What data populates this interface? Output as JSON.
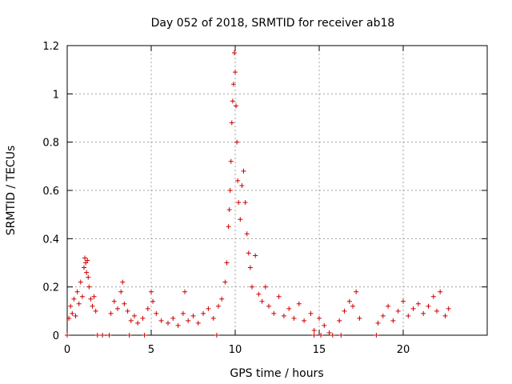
{
  "chart_data": {
    "type": "scatter",
    "title": "Day 052 of 2018, SRMTID for receiver ab18",
    "xlabel": "GPS time / hours",
    "ylabel": "SRMTID / TECUs",
    "xlim": [
      0,
      25
    ],
    "ylim": [
      0,
      1.2
    ],
    "xticks": [
      0,
      5,
      10,
      15,
      20
    ],
    "xtick_labels": [
      "0",
      "5",
      "10",
      "15",
      "20"
    ],
    "yticks": [
      0,
      0.2,
      0.4,
      0.6,
      0.8,
      1,
      1.2
    ],
    "ytick_labels": [
      "0",
      "0.2",
      "0.4",
      "0.6",
      "0.8",
      "1",
      "1.2"
    ],
    "grid": true,
    "marker": "+",
    "color": "#cc0000",
    "series": [
      {
        "name": "SRMTID",
        "points": [
          [
            0.1,
            0.07
          ],
          [
            0.2,
            0.12
          ],
          [
            0.3,
            0.09
          ],
          [
            0.4,
            0.15
          ],
          [
            0.5,
            0.08
          ],
          [
            0.6,
            0.18
          ],
          [
            0.7,
            0.13
          ],
          [
            0.8,
            0.22
          ],
          [
            0.9,
            0.16
          ],
          [
            1.0,
            0.28
          ],
          [
            1.05,
            0.32
          ],
          [
            1.1,
            0.3
          ],
          [
            1.15,
            0.26
          ],
          [
            1.2,
            0.31
          ],
          [
            1.25,
            0.24
          ],
          [
            1.3,
            0.2
          ],
          [
            1.4,
            0.15
          ],
          [
            1.5,
            0.12
          ],
          [
            1.6,
            0.16
          ],
          [
            1.7,
            0.1
          ],
          [
            2.6,
            0.09
          ],
          [
            2.8,
            0.14
          ],
          [
            3.0,
            0.11
          ],
          [
            3.2,
            0.18
          ],
          [
            3.3,
            0.22
          ],
          [
            3.4,
            0.13
          ],
          [
            3.6,
            0.1
          ],
          [
            3.8,
            0.06
          ],
          [
            4.0,
            0.08
          ],
          [
            4.2,
            0.05
          ],
          [
            4.5,
            0.07
          ],
          [
            4.8,
            0.11
          ],
          [
            5.0,
            0.18
          ],
          [
            5.1,
            0.14
          ],
          [
            5.3,
            0.09
          ],
          [
            5.6,
            0.06
          ],
          [
            6.0,
            0.05
          ],
          [
            6.3,
            0.07
          ],
          [
            6.6,
            0.04
          ],
          [
            6.9,
            0.09
          ],
          [
            7.0,
            0.18
          ],
          [
            7.2,
            0.06
          ],
          [
            7.5,
            0.08
          ],
          [
            7.8,
            0.05
          ],
          [
            8.1,
            0.09
          ],
          [
            8.4,
            0.11
          ],
          [
            8.7,
            0.07
          ],
          [
            9.0,
            0.12
          ],
          [
            9.2,
            0.15
          ],
          [
            9.4,
            0.22
          ],
          [
            9.5,
            0.3
          ],
          [
            9.6,
            0.45
          ],
          [
            9.65,
            0.52
          ],
          [
            9.7,
            0.6
          ],
          [
            9.75,
            0.72
          ],
          [
            9.8,
            0.88
          ],
          [
            9.85,
            0.97
          ],
          [
            9.9,
            1.04
          ],
          [
            9.95,
            1.17
          ],
          [
            10.0,
            1.09
          ],
          [
            10.05,
            0.95
          ],
          [
            10.1,
            0.8
          ],
          [
            10.15,
            0.64
          ],
          [
            10.2,
            0.55
          ],
          [
            10.3,
            0.48
          ],
          [
            10.4,
            0.62
          ],
          [
            10.5,
            0.68
          ],
          [
            10.6,
            0.55
          ],
          [
            10.7,
            0.42
          ],
          [
            10.8,
            0.34
          ],
          [
            10.9,
            0.28
          ],
          [
            11.0,
            0.2
          ],
          [
            11.2,
            0.33
          ],
          [
            11.4,
            0.17
          ],
          [
            11.6,
            0.14
          ],
          [
            11.8,
            0.2
          ],
          [
            12.0,
            0.12
          ],
          [
            12.3,
            0.09
          ],
          [
            12.6,
            0.16
          ],
          [
            12.9,
            0.08
          ],
          [
            13.2,
            0.11
          ],
          [
            13.5,
            0.07
          ],
          [
            13.8,
            0.13
          ],
          [
            14.1,
            0.06
          ],
          [
            14.5,
            0.09
          ],
          [
            14.7,
            0.02
          ],
          [
            15.0,
            0.07
          ],
          [
            15.3,
            0.04
          ],
          [
            15.6,
            0.01
          ],
          [
            16.2,
            0.06
          ],
          [
            16.5,
            0.1
          ],
          [
            16.8,
            0.14
          ],
          [
            17.0,
            0.12
          ],
          [
            17.2,
            0.18
          ],
          [
            17.4,
            0.07
          ],
          [
            18.5,
            0.05
          ],
          [
            18.8,
            0.08
          ],
          [
            19.1,
            0.12
          ],
          [
            19.4,
            0.06
          ],
          [
            19.7,
            0.1
          ],
          [
            20.0,
            0.14
          ],
          [
            20.3,
            0.08
          ],
          [
            20.6,
            0.11
          ],
          [
            20.9,
            0.13
          ],
          [
            21.2,
            0.09
          ],
          [
            21.5,
            0.12
          ],
          [
            21.8,
            0.16
          ],
          [
            22.0,
            0.1
          ],
          [
            22.2,
            0.18
          ],
          [
            22.5,
            0.08
          ],
          [
            22.7,
            0.11
          ],
          [
            0.0,
            0.0
          ],
          [
            1.8,
            0.0
          ],
          [
            2.1,
            0.0
          ],
          [
            2.5,
            0.0
          ],
          [
            3.7,
            0.0
          ],
          [
            4.6,
            0.0
          ],
          [
            8.9,
            0.0
          ],
          [
            14.7,
            0.0
          ],
          [
            15.1,
            0.0
          ],
          [
            15.8,
            0.0
          ],
          [
            16.3,
            0.0
          ],
          [
            18.4,
            0.0
          ]
        ]
      }
    ]
  }
}
